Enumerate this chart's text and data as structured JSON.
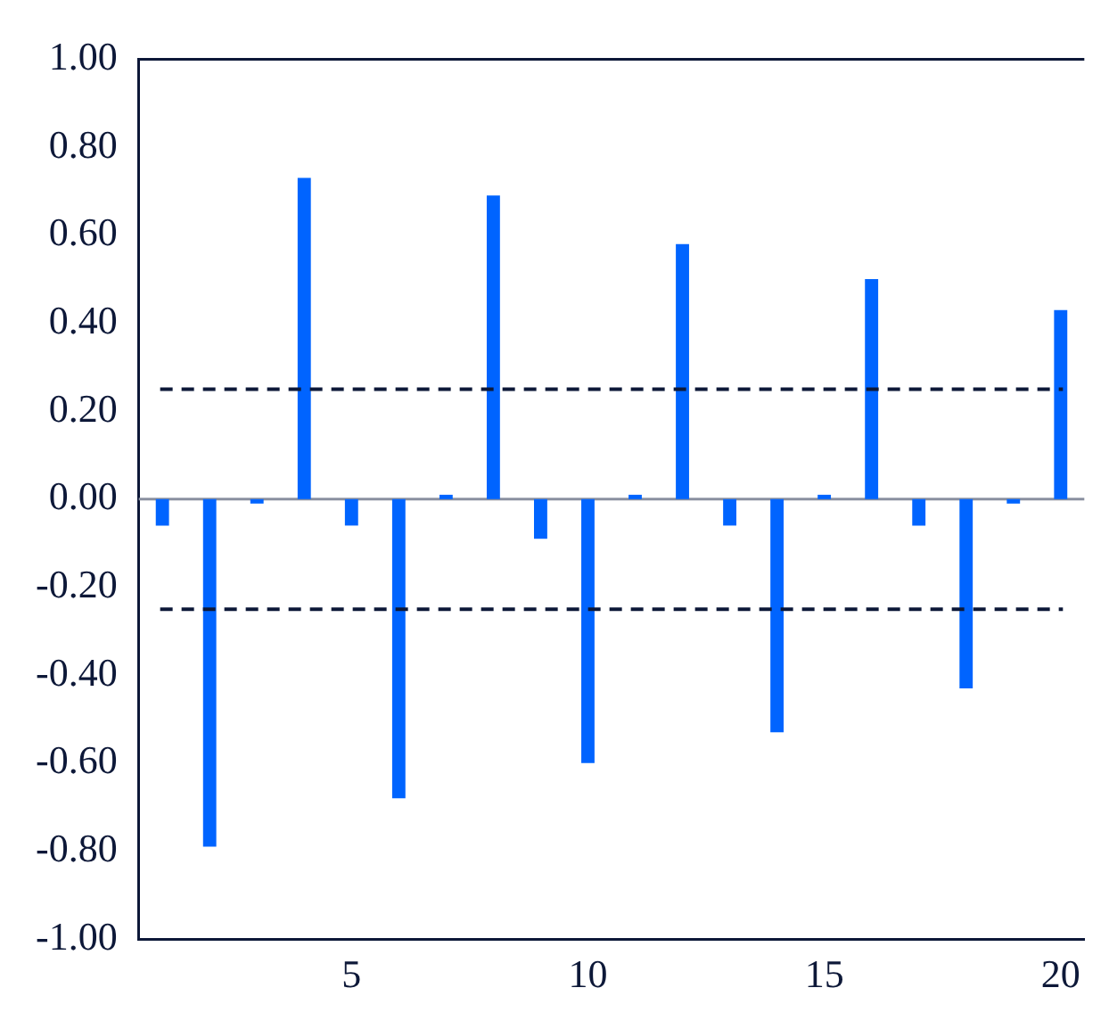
{
  "chart_data": {
    "type": "bar",
    "categories": [
      null,
      null,
      null,
      null,
      "5",
      null,
      null,
      null,
      null,
      "10",
      null,
      null,
      null,
      null,
      "15",
      null,
      null,
      null,
      null,
      "20"
    ],
    "values": [
      -0.06,
      -0.79,
      -0.01,
      0.73,
      -0.06,
      -0.68,
      0.01,
      0.69,
      -0.09,
      -0.6,
      0.01,
      0.58,
      -0.06,
      -0.53,
      0.01,
      0.5,
      -0.06,
      -0.43,
      -0.01,
      0.43
    ],
    "color": "#0064ff",
    "ylim": [
      -1,
      1
    ],
    "yticks": [
      {
        "value": -1,
        "label": "-1.00"
      },
      {
        "value": -0.8,
        "label": "-0.80"
      },
      {
        "value": -0.6,
        "label": "-0.60"
      },
      {
        "value": -0.4,
        "label": "-0.40"
      },
      {
        "value": -0.2,
        "label": "-0.20"
      },
      {
        "value": 0,
        "label": "0.00"
      },
      {
        "value": 0.2,
        "label": "0.20"
      },
      {
        "value": 0.4,
        "label": "0.40"
      },
      {
        "value": 0.6,
        "label": "0.60"
      },
      {
        "value": 0.8,
        "label": "0.80"
      },
      {
        "value": 1,
        "label": "1.00"
      }
    ],
    "ref_lines": [
      {
        "axis": "y",
        "value": 0.25,
        "color": "#0d1838",
        "line_style": "dashed"
      },
      {
        "axis": "y",
        "value": -0.25,
        "color": "#0d1838",
        "line_style": "dashed"
      }
    ],
    "legend": false
  }
}
